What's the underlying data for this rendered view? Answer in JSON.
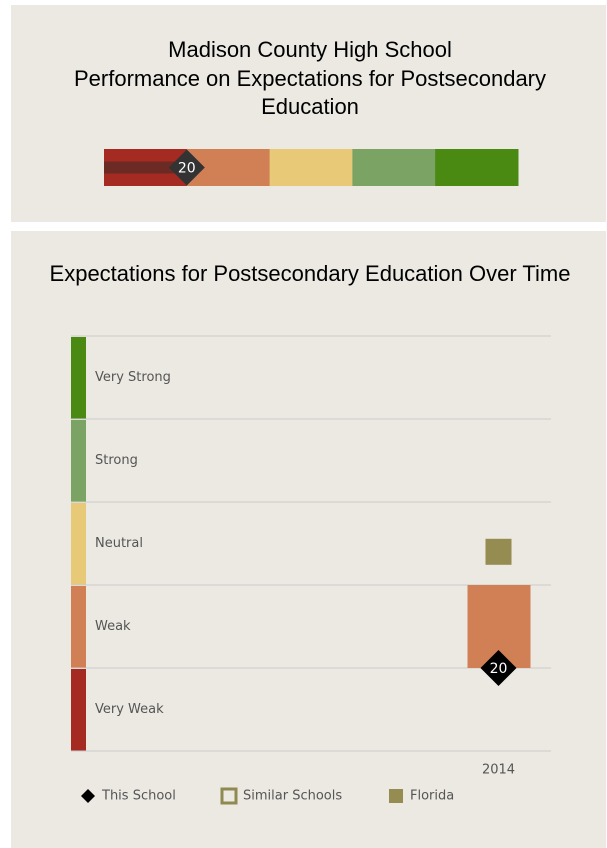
{
  "chart_data": [
    {
      "type": "gauge",
      "title": "Madison County High School",
      "subtitle": "Performance on Expectations for Postsecondary Education",
      "value": 20,
      "xlim": [
        0,
        100
      ],
      "bands": [
        {
          "color": "#a52a22"
        },
        {
          "color": "#d17f55"
        },
        {
          "color": "#e8c978"
        },
        {
          "color": "#7aa364"
        },
        {
          "color": "#4a8a12"
        }
      ],
      "marker_color": "#333333",
      "fill_color": "#6b2a24"
    },
    {
      "type": "band_chart",
      "title": "Expectations for Postsecondary Education Over Time",
      "categories": [
        "2014"
      ],
      "ylim": [
        0,
        100
      ],
      "yticks": [
        0,
        20,
        40,
        60,
        80,
        100
      ],
      "bands": [
        {
          "name": "Very Weak",
          "color": "#a52a22"
        },
        {
          "name": "Weak",
          "color": "#d17f55"
        },
        {
          "name": "Neutral",
          "color": "#e8c978"
        },
        {
          "name": "Strong",
          "color": "#7aa364"
        },
        {
          "name": "Very Strong",
          "color": "#4a8a12"
        }
      ],
      "series": [
        {
          "name": "This School",
          "color": "#000000",
          "values": [
            20
          ]
        },
        {
          "name": "Similar Schools",
          "color": "#8f8a52",
          "values": [
            null
          ]
        },
        {
          "name": "Florida",
          "color": "#958c52",
          "values": [
            48
          ]
        }
      ]
    }
  ]
}
